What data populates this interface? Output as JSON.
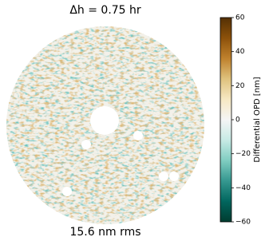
{
  "chart_data": {
    "type": "heatmap",
    "title": "Δh = 0.75 hr",
    "xlabel": "15.6 nm rms",
    "colorbar": {
      "label": "Differential OPD [nm]",
      "lim": [
        -60,
        60
      ],
      "colormap": "BrBG",
      "ticks": [
        {
          "value": -60,
          "label": "−60"
        },
        {
          "value": -40,
          "label": "−40"
        },
        {
          "value": -20,
          "label": "−20"
        },
        0,
        20,
        40,
        60
      ]
    }
  }
}
